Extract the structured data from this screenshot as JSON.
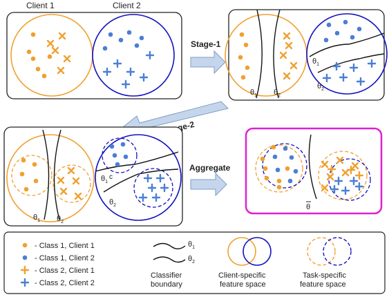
{
  "header": {
    "client1": "Client 1",
    "client2": "Client 2"
  },
  "stages": {
    "stage1": "Stage-1",
    "stage2": "Stage-2",
    "aggregate": "Aggregate"
  },
  "symbols": {
    "theta": "θ",
    "sub1": "1",
    "sub2": "2",
    "c": "c"
  },
  "legend": {
    "items": [
      "- Class 1, Client 1",
      "- Class 1, Client 2",
      "- Class 2, Client 1",
      "- Class 2, Client 2"
    ],
    "classifier_line1": "Classifier",
    "classifier_line2": "boundary",
    "client_space_line1": "Client-specific",
    "client_space_line2": "feature space",
    "task_space_line1": "Task-specific",
    "task_space_line2": "feature space"
  },
  "colors": {
    "orange": "#f0a030",
    "blue": "#4a7fd4",
    "navy": "#1010c0",
    "magenta": "#e020d0",
    "arrow_fill": "#c5d6ec",
    "arrow_stroke": "#7f9cc6"
  }
}
